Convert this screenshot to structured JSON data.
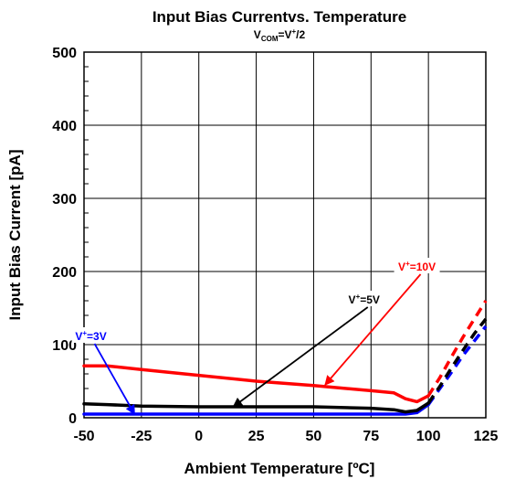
{
  "chart_data": {
    "type": "line",
    "title": "Input Bias Currentvs. Temperature",
    "subtitle": {
      "main": "V",
      "sub": "COM",
      "rest": "=V",
      "sup": "+",
      "tail": "/2"
    },
    "xlabel": "Ambient Temperature [ºC]",
    "ylabel": "Input Bias Current [pA]",
    "xlim": [
      -50,
      125
    ],
    "ylim": [
      0,
      500
    ],
    "x_ticks": [
      -50,
      -25,
      0,
      25,
      50,
      75,
      100,
      125
    ],
    "y_ticks": [
      0,
      100,
      200,
      300,
      400,
      500
    ],
    "grid": true,
    "series": [
      {
        "name": "V+=10V",
        "label": {
          "main": "V",
          "sup": "+",
          "rest": "=10V"
        },
        "color": "#ff0000",
        "x": [
          -50,
          -40,
          -25,
          0,
          25,
          50,
          75,
          85,
          90,
          95,
          100
        ],
        "y": [
          71,
          71,
          66,
          58,
          50,
          44,
          37,
          34,
          26,
          22,
          30
        ],
        "dashed_x": [
          100,
          105,
          110,
          115,
          120,
          125
        ],
        "dashed_y": [
          30,
          55,
          83,
          110,
          135,
          160
        ]
      },
      {
        "name": "V+=5V",
        "label": {
          "main": "V",
          "sup": "+",
          "rest": "=5V"
        },
        "color": "#000000",
        "x": [
          -50,
          -40,
          -25,
          0,
          25,
          50,
          75,
          85,
          90,
          95,
          100
        ],
        "y": [
          19,
          18,
          16,
          15,
          15,
          15,
          13,
          11,
          8,
          10,
          20
        ],
        "dashed_x": [
          100,
          105,
          110,
          115,
          120,
          125
        ],
        "dashed_y": [
          20,
          43,
          68,
          92,
          115,
          135
        ]
      },
      {
        "name": "V+=3V",
        "label": {
          "main": "V",
          "sup": "+",
          "rest": "=3V"
        },
        "color": "#0000ff",
        "x": [
          -50,
          -25,
          0,
          25,
          50,
          75,
          90,
          95,
          100
        ],
        "y": [
          5,
          5,
          5,
          5,
          5,
          5,
          5,
          7,
          18
        ],
        "dashed_x": [
          100,
          105,
          110,
          115,
          120,
          125
        ],
        "dashed_y": [
          18,
          40,
          62,
          85,
          105,
          125
        ]
      }
    ],
    "annotations": [
      {
        "series": 0,
        "text_at": [
          95,
          205
        ],
        "arrow_to": [
          55,
          45
        ]
      },
      {
        "series": 1,
        "text_at": [
          72,
          160
        ],
        "arrow_to": [
          15,
          15
        ]
      },
      {
        "series": 2,
        "text_at": [
          -47,
          110
        ],
        "arrow_to": [
          -28,
          5
        ]
      }
    ]
  }
}
